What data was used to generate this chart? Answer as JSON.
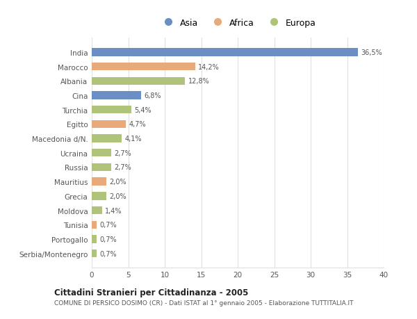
{
  "categories": [
    "India",
    "Marocco",
    "Albania",
    "Cina",
    "Turchia",
    "Egitto",
    "Macedonia d/N.",
    "Ucraina",
    "Russia",
    "Mauritius",
    "Grecia",
    "Moldova",
    "Tunisia",
    "Portogallo",
    "Serbia/Montenegro"
  ],
  "values": [
    36.5,
    14.2,
    12.8,
    6.8,
    5.4,
    4.7,
    4.1,
    2.7,
    2.7,
    2.0,
    2.0,
    1.4,
    0.7,
    0.7,
    0.7
  ],
  "labels": [
    "36,5%",
    "14,2%",
    "12,8%",
    "6,8%",
    "5,4%",
    "4,7%",
    "4,1%",
    "2,7%",
    "2,7%",
    "2,0%",
    "2,0%",
    "1,4%",
    "0,7%",
    "0,7%",
    "0,7%"
  ],
  "colors": [
    "#6b8ec4",
    "#e8aa7a",
    "#afc47a",
    "#6b8ec4",
    "#afc47a",
    "#e8aa7a",
    "#afc47a",
    "#afc47a",
    "#afc47a",
    "#e8aa7a",
    "#afc47a",
    "#afc47a",
    "#e8aa7a",
    "#afc47a",
    "#afc47a"
  ],
  "legend_labels": [
    "Asia",
    "Africa",
    "Europa"
  ],
  "legend_colors": [
    "#6b8ec4",
    "#e8aa7a",
    "#afc47a"
  ],
  "title_bold": "Cittadini Stranieri per Cittadinanza - 2005",
  "subtitle": "COMUNE DI PERSICO DOSIMO (CR) - Dati ISTAT al 1° gennaio 2005 - Elaborazione TUTTITALIA.IT",
  "xlim": [
    0,
    40
  ],
  "xticks": [
    0,
    5,
    10,
    15,
    20,
    25,
    30,
    35,
    40
  ],
  "background_color": "#ffffff",
  "plot_bg_color": "#ffffff",
  "grid_color": "#e0e0e0"
}
